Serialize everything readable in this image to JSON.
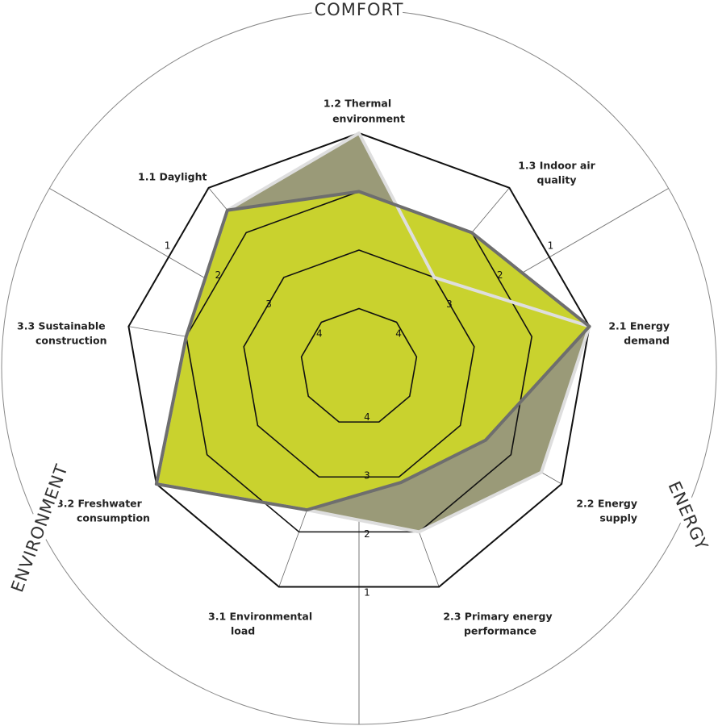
{
  "chart_data": {
    "type": "radar",
    "categories": [
      [
        "1.2 Thermal",
        "environment"
      ],
      [
        "1.3 Indoor air",
        "quality"
      ],
      [
        "2.1 Energy",
        "demand"
      ],
      [
        "2.2 Energy",
        "supply"
      ],
      [
        "2.3 Primary energy",
        "performance"
      ],
      [
        "3.1 Environmental",
        "load"
      ],
      [
        "3.2 Freshwater",
        "consumption"
      ],
      [
        "3.3 Sustainable",
        "construction"
      ],
      [
        "1.1 Daylight"
      ]
    ],
    "groups": [
      "COMFORT",
      "ENERGY",
      "ENVIRONMENT"
    ],
    "rlim": [
      5,
      1
    ],
    "rticks": [
      1,
      2,
      3,
      4
    ],
    "series": [
      {
        "color": "#9a9a78",
        "outline": "#dedede",
        "values": [
          1.0,
          3.0,
          1.0,
          1.4,
          2.0,
          2.4,
          1.0,
          2.0,
          1.5
        ]
      },
      {
        "color": "#c9d22e",
        "outline": "#6e6e6e",
        "values": [
          2.0,
          2.0,
          1.0,
          2.5,
          2.9,
          2.4,
          1.0,
          2.0,
          1.5
        ]
      }
    ]
  }
}
